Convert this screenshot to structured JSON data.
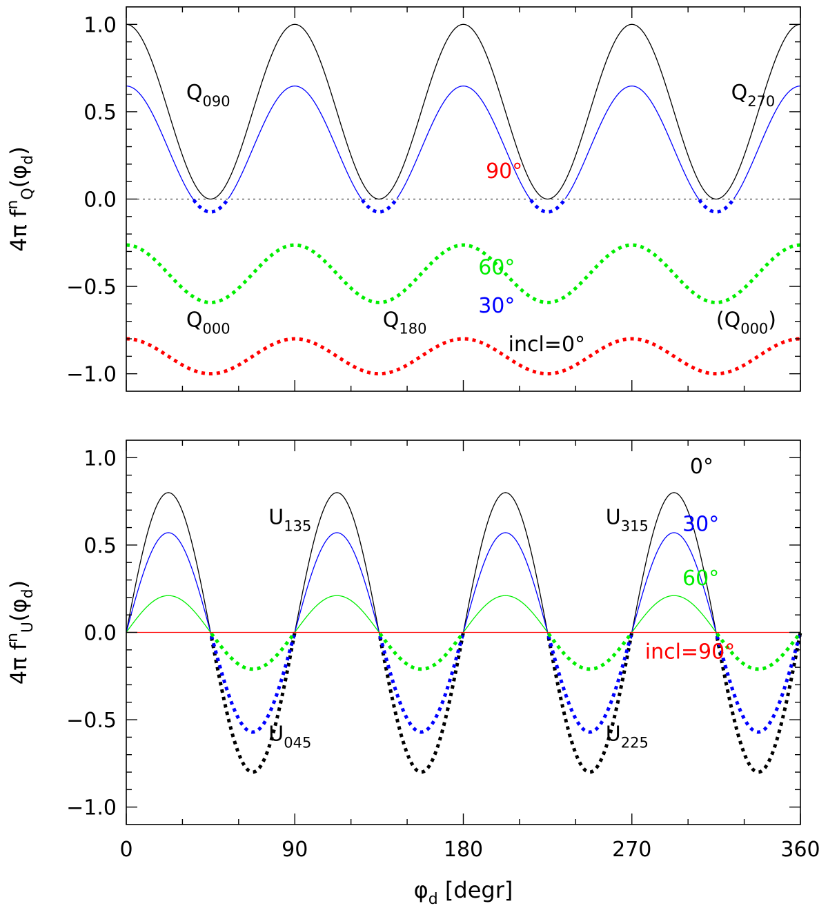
{
  "chart_data": [
    {
      "type": "line",
      "panel": "top",
      "ylabel": "4π f_Q^n(φ_d)",
      "ylabel_parts": {
        "pre": "4π f",
        "sup": "n",
        "sub": "Q",
        "open": "(φ",
        "sub2": "d",
        "close": ")"
      },
      "xlim": [
        0,
        360
      ],
      "ylim": [
        -1.1,
        1.1
      ],
      "y_ticks": [
        1.0,
        0.5,
        0.0,
        -0.5,
        -1.0
      ],
      "y_tick_labels": [
        "1.0",
        "0.5",
        "0.0",
        "−0.5",
        "−1.0"
      ],
      "x_ticks": [
        0,
        90,
        180,
        270,
        360
      ],
      "zero_line": "dotted",
      "series": [
        {
          "name": "incl=0°",
          "color": "#000000",
          "incl_deg": 0
        },
        {
          "name": "30°",
          "color": "#0000ff",
          "incl_deg": 30
        },
        {
          "name": "60°",
          "color": "#00ee00",
          "incl_deg": 60
        },
        {
          "name": "90°",
          "color": "#ff0000",
          "incl_deg": 90
        }
      ],
      "note": "positive values drawn solid, negative values drawn dotted",
      "annotations": [
        {
          "text": "Q",
          "sub": "090",
          "x": 32,
          "y": 0.57,
          "color": "#000000"
        },
        {
          "text": "Q",
          "sub": "270",
          "x": 323,
          "y": 0.57,
          "color": "#000000"
        },
        {
          "text": "Q",
          "sub": "000",
          "x": 32,
          "y": -0.73,
          "color": "#000000"
        },
        {
          "text": "Q",
          "sub": "180",
          "x": 137,
          "y": -0.73,
          "color": "#000000"
        },
        {
          "text": "(Q",
          "sub": "000",
          "post": ")",
          "x": 315,
          "y": -0.73,
          "color": "#000000"
        },
        {
          "text": "90°",
          "x": 192,
          "y": 0.12,
          "color": "#ff0000"
        },
        {
          "text": "60°",
          "x": 188,
          "y": -0.43,
          "color": "#00ee00"
        },
        {
          "text": "30°",
          "x": 188,
          "y": -0.65,
          "color": "#0000ff"
        },
        {
          "text": "incl=0°",
          "x": 204,
          "y": -0.87,
          "color": "#000000"
        }
      ]
    },
    {
      "type": "line",
      "panel": "bottom",
      "ylabel": "4π f_U^n(φ_d)",
      "ylabel_parts": {
        "pre": "4π f",
        "sup": "n",
        "sub": "U",
        "open": "(φ",
        "sub2": "d",
        "close": ")"
      },
      "xlabel": "φd [degr]",
      "xlabel_parts": {
        "pre": "φ",
        "sub": "d",
        "post": " [degr]"
      },
      "xlim": [
        0,
        360
      ],
      "ylim": [
        -1.1,
        1.1
      ],
      "y_ticks": [
        1.0,
        0.5,
        0.0,
        -0.5,
        -1.0
      ],
      "y_tick_labels": [
        "1.0",
        "0.5",
        "0.0",
        "−0.5",
        "−1.0"
      ],
      "x_ticks": [
        0,
        90,
        180,
        270,
        360
      ],
      "x_tick_labels": [
        "0",
        "90",
        "180",
        "270",
        "360"
      ],
      "series": [
        {
          "name": "0°",
          "color": "#000000",
          "incl_deg": 0
        },
        {
          "name": "30°",
          "color": "#0000ff",
          "incl_deg": 30
        },
        {
          "name": "60°",
          "color": "#00ee00",
          "incl_deg": 60
        },
        {
          "name": "incl=90°",
          "color": "#ff0000",
          "incl_deg": 90
        }
      ],
      "note": "positive values drawn solid, negative values drawn dotted",
      "annotations": [
        {
          "text": "U",
          "sub": "135",
          "x": 76,
          "y": 0.62,
          "color": "#000000"
        },
        {
          "text": "U",
          "sub": "315",
          "x": 256,
          "y": 0.62,
          "color": "#000000"
        },
        {
          "text": "U",
          "sub": "045",
          "x": 76,
          "y": -0.62,
          "color": "#000000"
        },
        {
          "text": "U",
          "sub": "225",
          "x": 256,
          "y": -0.62,
          "color": "#000000"
        },
        {
          "text": "0°",
          "x": 301,
          "y": 0.91,
          "color": "#000000"
        },
        {
          "text": "30°",
          "x": 297,
          "y": 0.58,
          "color": "#0000ff"
        },
        {
          "text": "60°",
          "x": 297,
          "y": 0.27,
          "color": "#00ee00"
        },
        {
          "text": "incl=90°",
          "x": 277,
          "y": -0.15,
          "color": "#ff0000"
        }
      ]
    }
  ]
}
